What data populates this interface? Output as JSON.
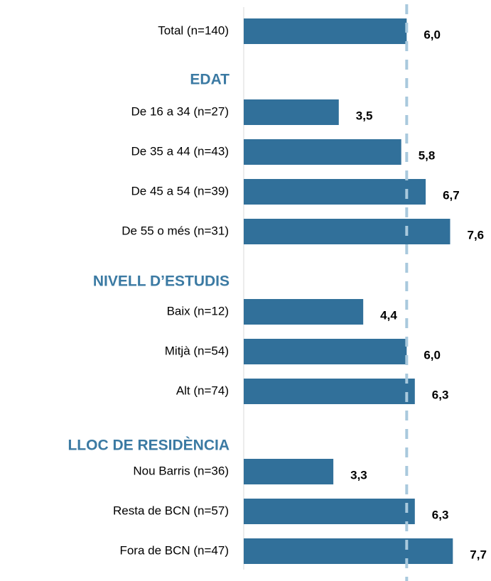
{
  "chart_data": {
    "type": "bar",
    "orientation": "horizontal",
    "categories": [
      "Total (n=140)",
      "EDAT",
      "De 16 a 34 (n=27)",
      "De 35 a 44 (n=43)",
      "De 45 a 54 (n=39)",
      "De 55 o més (n=31)",
      "NIVELL D’ESTUDIS",
      "Baix (n=12)",
      "Mitjà (n=54)",
      "Alt (n=74)",
      "LLOC DE RESIDÈNCIA",
      "Nou Barris (n=36)",
      "Resta de BCN (n=57)",
      "Fora de BCN (n=47)"
    ],
    "values": [
      6.0,
      null,
      3.5,
      5.8,
      6.7,
      7.6,
      null,
      4.4,
      6.0,
      6.3,
      null,
      3.3,
      6.3,
      7.7
    ],
    "value_labels": [
      "6,0",
      null,
      "3,5",
      "5,8",
      "6,7",
      "7,6",
      null,
      "4,4",
      "6,0",
      "6,3",
      null,
      "3,3",
      "6,3",
      "7,7"
    ],
    "color": "#31709a",
    "header_color": "#3b7aa3",
    "reference_line": 6.0,
    "reference_color": "#a9c9dd",
    "xlim": [
      0,
      9
    ]
  }
}
